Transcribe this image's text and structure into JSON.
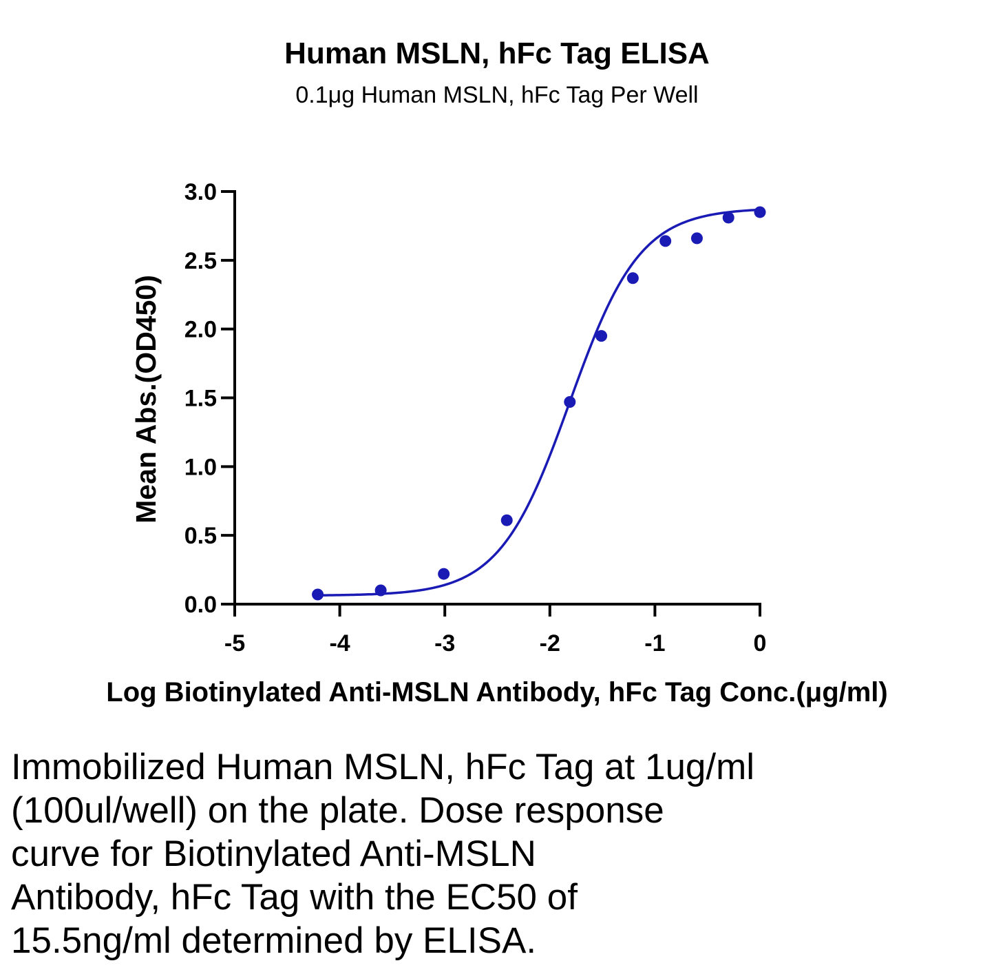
{
  "chart_data": {
    "type": "scatter",
    "title": "Human MSLN, hFc Tag ELISA",
    "subtitle": "0.1μg Human MSLN, hFc Tag Per Well",
    "xlabel": "Log Biotinylated Anti-MSLN Antibody, hFc Tag Conc.(μg/ml)",
    "ylabel": "Mean Abs.(OD450)",
    "xlim": [
      -5,
      0
    ],
    "ylim": [
      0,
      3.0
    ],
    "x_ticks": [
      -5,
      -4,
      -3,
      -2,
      -1,
      0
    ],
    "x_tick_labels": [
      "-5",
      "-4",
      "-3",
      "-2",
      "-1",
      "0"
    ],
    "y_ticks": [
      0,
      0.5,
      1.0,
      1.5,
      2.0,
      2.5,
      3.0
    ],
    "y_tick_labels": [
      "0.0",
      "0.5",
      "1.0",
      "1.5",
      "2.0",
      "2.5",
      "3.0"
    ],
    "grid": false,
    "color": "#1a1ab4",
    "series": [
      {
        "x": [
          -4.21,
          -3.61,
          -3.01,
          -2.41,
          -1.81,
          -1.51,
          -1.21,
          -0.9,
          -0.6,
          -0.3,
          0
        ],
        "y": [
          0.07,
          0.1,
          0.22,
          0.61,
          1.47,
          1.95,
          2.37,
          2.64,
          2.66,
          2.81,
          2.85
        ],
        "fit": "4PL",
        "fit_params": {
          "bottom": 0.062,
          "top": 2.88,
          "log_ec50": -1.81,
          "hill": 1.3
        }
      }
    ]
  },
  "caption_lines": [
    "Immobilized Human MSLN, hFc Tag at 1ug/ml",
    "(100ul/well) on the plate. Dose response",
    "curve for Biotinylated Anti-MSLN",
    "Antibody, hFc Tag with the EC50 of",
    "15.5ng/ml determined by ELISA."
  ]
}
